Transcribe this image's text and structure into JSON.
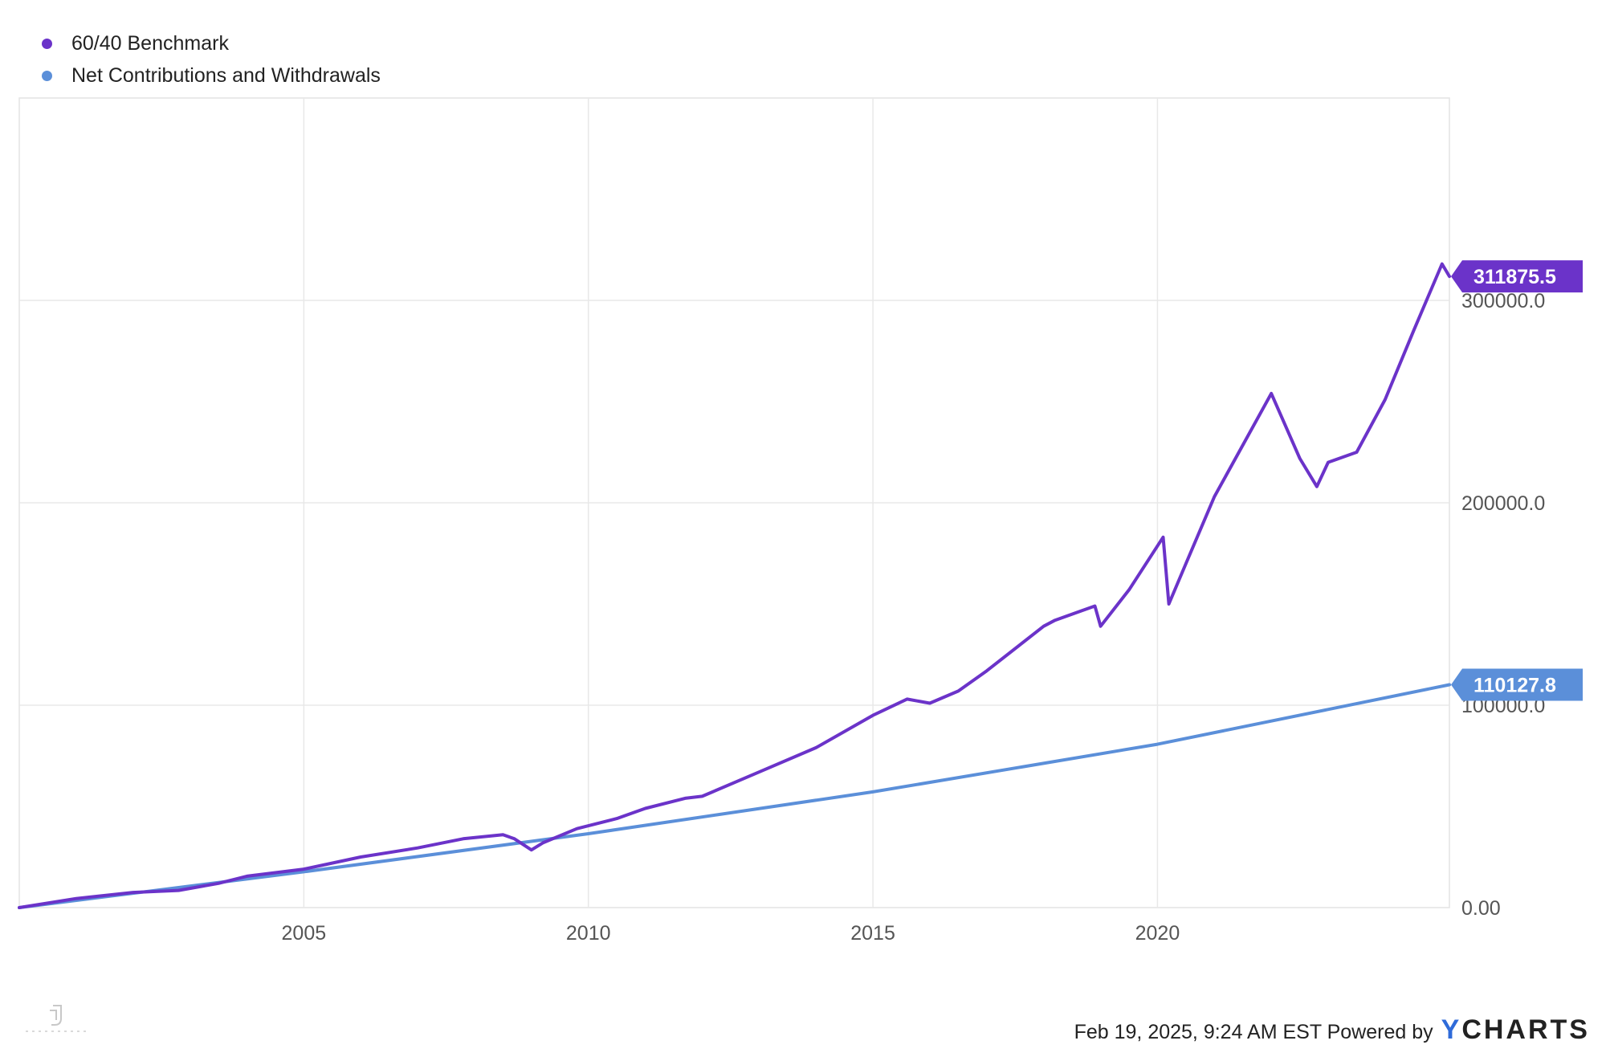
{
  "chart_data": {
    "type": "line",
    "x_axis": {
      "type": "time",
      "range": [
        2000.0,
        2025.13
      ],
      "ticks": [
        2005,
        2010,
        2015,
        2020
      ]
    },
    "y_axis": {
      "range": [
        0,
        400000
      ],
      "tick_labels": [
        "0.00",
        "100000.0",
        "200000.0",
        "300000.0"
      ],
      "tick_values": [
        0,
        100000,
        200000,
        300000
      ],
      "position": "right"
    },
    "grid": true,
    "legend_placement": "top-left",
    "series": [
      {
        "name": "60/40 Benchmark",
        "color": "#6b33c9",
        "end_label": "311875.5",
        "points": [
          [
            2000.0,
            0
          ],
          [
            2001.0,
            4500
          ],
          [
            2002.0,
            7500
          ],
          [
            2002.8,
            8500
          ],
          [
            2003.5,
            12000
          ],
          [
            2004.0,
            15500
          ],
          [
            2005.0,
            19000
          ],
          [
            2006.0,
            25000
          ],
          [
            2007.0,
            29500
          ],
          [
            2007.8,
            34000
          ],
          [
            2008.5,
            36000
          ],
          [
            2008.7,
            34000
          ],
          [
            2009.0,
            28500
          ],
          [
            2009.2,
            32000
          ],
          [
            2009.8,
            39000
          ],
          [
            2010.5,
            44000
          ],
          [
            2011.0,
            49000
          ],
          [
            2011.7,
            54000
          ],
          [
            2012.0,
            55000
          ],
          [
            2013.0,
            67000
          ],
          [
            2014.0,
            79000
          ],
          [
            2015.0,
            95000
          ],
          [
            2015.6,
            103000
          ],
          [
            2016.0,
            101000
          ],
          [
            2016.5,
            107000
          ],
          [
            2017.0,
            117000
          ],
          [
            2018.0,
            139000
          ],
          [
            2018.2,
            142000
          ],
          [
            2018.9,
            149000
          ],
          [
            2019.0,
            139000
          ],
          [
            2019.5,
            157000
          ],
          [
            2020.1,
            183000
          ],
          [
            2020.2,
            150000
          ],
          [
            2020.5,
            170000
          ],
          [
            2021.0,
            203000
          ],
          [
            2022.0,
            254000
          ],
          [
            2022.5,
            222000
          ],
          [
            2022.8,
            208000
          ],
          [
            2023.0,
            220000
          ],
          [
            2023.5,
            225000
          ],
          [
            2024.0,
            251000
          ],
          [
            2024.5,
            285000
          ],
          [
            2025.0,
            318000
          ],
          [
            2025.13,
            311875.5
          ]
        ]
      },
      {
        "name": "Net Contributions and Withdrawals",
        "color": "#5b8fd9",
        "end_label": "110127.8",
        "points": [
          [
            2000.0,
            0
          ],
          [
            2005.0,
            17700
          ],
          [
            2010.0,
            36500
          ],
          [
            2015.0,
            57200
          ],
          [
            2020.0,
            80700
          ],
          [
            2025.13,
            110127.8
          ]
        ]
      }
    ]
  },
  "footer": {
    "timestamp": "Feb 19, 2025, 9:24 AM EST Powered by",
    "brand_y": "Y",
    "brand_rest": "CHARTS"
  }
}
